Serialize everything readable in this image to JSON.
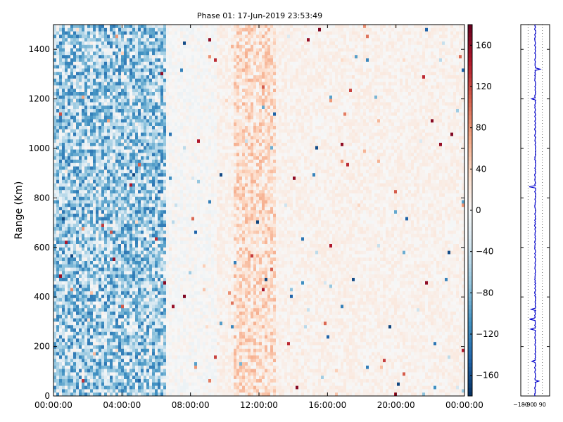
{
  "chart_data": [
    {
      "type": "heatmap",
      "title": "Phase 01: 17-Jun-2019 23:53:49",
      "xlabel": "",
      "ylabel": "Range (Km)",
      "x_ticks": [
        "00:00:00",
        "04:00:00",
        "08:00:00",
        "12:00:00",
        "16:00:00",
        "20:00:00",
        "00:00:00"
      ],
      "x_range_hours": [
        0,
        24
      ],
      "y_ticks": [
        0,
        200,
        400,
        600,
        800,
        1000,
        1200,
        1400
      ],
      "ylim": [
        0,
        1500
      ],
      "colormap": "RdBu_r",
      "colorbar": {
        "range": [
          -180,
          180
        ],
        "ticks": [
          -160,
          -120,
          -80,
          -40,
          0,
          40,
          80,
          120,
          160
        ],
        "tick_labels": [
          "−160",
          "−120",
          "−80",
          "−40",
          "0",
          "40",
          "80",
          "120",
          "160"
        ]
      },
      "pattern_regions": [
        {
          "hours": [
            0,
            6.6
          ],
          "range_km": [
            0,
            1500
          ],
          "typical_phase": -60,
          "noise": "high"
        },
        {
          "hours": [
            6.6,
            9.5
          ],
          "range_km": [
            0,
            1500
          ],
          "typical_phase": 0,
          "noise": "low"
        },
        {
          "hours": [
            10.5,
            13.0
          ],
          "range_km": [
            0,
            1500
          ],
          "typical_phase": 30,
          "noise": "medium"
        },
        {
          "hours": [
            13.0,
            24
          ],
          "range_km": [
            0,
            1500
          ],
          "typical_phase": 8,
          "noise": "low"
        }
      ],
      "grid": false
    },
    {
      "type": "line",
      "title": "",
      "x_ticks": [
        -180,
        -90,
        0,
        90
      ],
      "x_tick_labels": [
        "−180",
        "−90",
        "0",
        "90"
      ],
      "xlim": [
        -180,
        180
      ],
      "ylim": [
        0,
        1500
      ],
      "series": [
        {
          "color": "#0000cc",
          "baseline_phase": 0,
          "spikes": [
            {
              "range_km": 60,
              "phase": 45
            },
            {
              "range_km": 140,
              "phase": -40
            },
            {
              "range_km": 270,
              "phase": -55
            },
            {
              "range_km": 310,
              "phase": -70
            },
            {
              "range_km": 350,
              "phase": -50
            },
            {
              "range_km": 845,
              "phase": -75
            },
            {
              "range_km": 1200,
              "phase": -45
            },
            {
              "range_km": 1320,
              "phase": 60
            }
          ]
        }
      ],
      "grid": true
    }
  ]
}
